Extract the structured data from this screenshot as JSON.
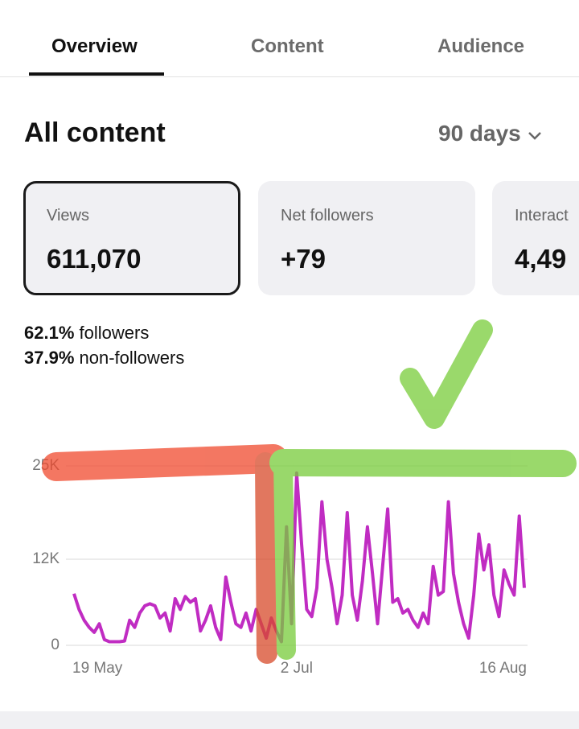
{
  "tabs": [
    "Overview",
    "Content",
    "Audience"
  ],
  "header": {
    "title": "All content",
    "range": "90 days"
  },
  "cards": [
    {
      "label": "Views",
      "value": "611,070"
    },
    {
      "label": "Net followers",
      "value": "+79"
    },
    {
      "label": "Interact",
      "value": "4,49"
    }
  ],
  "breakdown": [
    {
      "percent": "62.1%",
      "label": "followers"
    },
    {
      "percent": "37.9%",
      "label": "non-followers"
    }
  ],
  "chart_data": {
    "type": "line",
    "color": "#c02cc2",
    "grid": true,
    "categories": [
      "19 May",
      null,
      null,
      null,
      null,
      null,
      null,
      null,
      null,
      null,
      null,
      null,
      null,
      null,
      null,
      null,
      null,
      null,
      null,
      null,
      null,
      null,
      null,
      null,
      null,
      null,
      null,
      null,
      null,
      null,
      null,
      null,
      null,
      null,
      null,
      null,
      null,
      null,
      null,
      null,
      null,
      null,
      null,
      null,
      "2 Jul",
      null,
      null,
      null,
      null,
      null,
      null,
      null,
      null,
      null,
      null,
      null,
      null,
      null,
      null,
      null,
      null,
      null,
      null,
      null,
      null,
      null,
      null,
      null,
      null,
      null,
      null,
      null,
      null,
      null,
      null,
      null,
      null,
      null,
      null,
      null,
      null,
      null,
      null,
      null,
      null,
      null,
      null,
      null,
      null,
      "16 Aug"
    ],
    "values": [
      7200,
      5000,
      3500,
      2500,
      1800,
      3000,
      800,
      500,
      500,
      500,
      600,
      3500,
      2500,
      4500,
      5500,
      5800,
      5500,
      3800,
      4500,
      2000,
      6500,
      5000,
      6800,
      6000,
      6500,
      2000,
      3500,
      5500,
      2500,
      800,
      9500,
      6000,
      3000,
      2500,
      4500,
      2000,
      5000,
      3000,
      1000,
      3800,
      2000,
      500,
      16500,
      3000,
      24000,
      14000,
      5000,
      4000,
      8000,
      20000,
      12000,
      8000,
      3000,
      7000,
      18500,
      7000,
      3500,
      9000,
      16500,
      10000,
      3000,
      11000,
      19000,
      6000,
      6500,
      4500,
      5000,
      3500,
      2500,
      4500,
      3000,
      11000,
      7000,
      7500,
      20000,
      10000,
      6000,
      3000,
      1000,
      7000,
      15500,
      10500,
      14000,
      7000,
      4000,
      10500,
      8500,
      7000,
      18000,
      8000
    ],
    "ylim": [
      0,
      25000
    ],
    "yticks": [
      0,
      {
        "value": 12000,
        "label": "12K"
      },
      {
        "value": 25000,
        "label": "25K"
      }
    ]
  }
}
